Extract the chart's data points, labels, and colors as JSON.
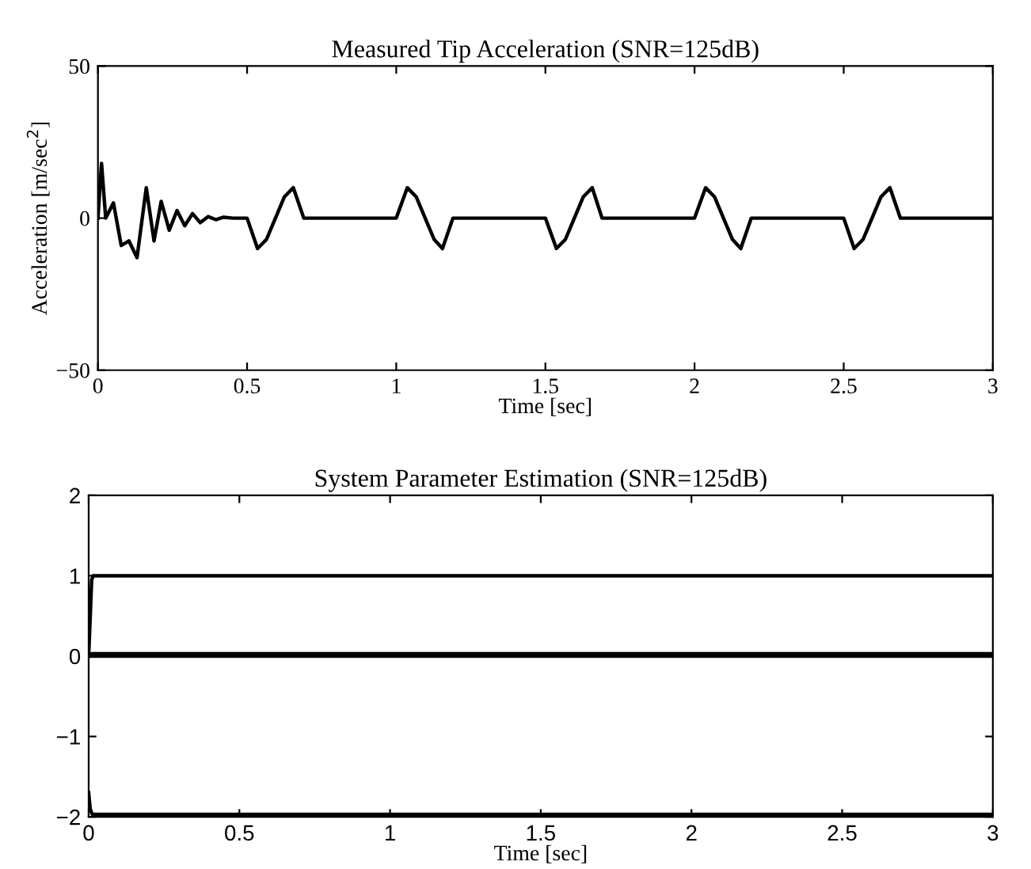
{
  "chart_data": [
    {
      "type": "line",
      "title": "Measured Tip Acceleration (SNR=125dB)",
      "xlabel": "Time [sec]",
      "ylabel": "Acceleration [m/sec$^{2}$]",
      "xlim": [
        0,
        3
      ],
      "ylim": [
        -50,
        50
      ],
      "xticks": [
        0,
        0.5,
        1,
        1.5,
        2,
        2.5,
        3
      ],
      "yticks": [
        -50,
        0,
        50
      ],
      "grid": false,
      "legend": false,
      "marker": "none",
      "line_style": "solid",
      "series": [
        {
          "color": "#000000",
          "x": [
            0,
            0.012,
            0.026,
            0.052,
            0.078,
            0.104,
            0.131,
            0.162,
            0.188,
            0.212,
            0.239,
            0.265,
            0.291,
            0.317,
            0.343,
            0.369,
            0.395,
            0.421,
            0.453,
            0.5,
            0.535,
            0.565,
            0.595,
            0.625,
            0.655,
            0.69,
            1.0,
            1.037,
            1.067,
            1.097,
            1.127,
            1.155,
            1.19,
            1.5,
            1.537,
            1.567,
            1.597,
            1.627,
            1.657,
            1.69,
            2.0,
            2.037,
            2.067,
            2.097,
            2.127,
            2.155,
            2.19,
            2.5,
            2.535,
            2.565,
            2.595,
            2.625,
            2.655,
            2.69,
            3.0
          ],
          "values": [
            0,
            18,
            0,
            5,
            -9,
            -7.5,
            -13,
            10,
            -7.5,
            5.5,
            -4,
            2.5,
            -2.5,
            1.5,
            -1.5,
            0.5,
            -0.5,
            0.3,
            0,
            0,
            -10,
            -7,
            0,
            7,
            10,
            0,
            0,
            10,
            7,
            0,
            -7,
            -10,
            0,
            0,
            -10,
            -7,
            0,
            7,
            10,
            0,
            0,
            10,
            7,
            0,
            -7,
            -10,
            0,
            0,
            -10,
            -7,
            0,
            7,
            10,
            0,
            0
          ]
        }
      ]
    },
    {
      "type": "line",
      "title": "System Parameter Estimation (SNR=125dB)",
      "xlabel": "Time [sec]",
      "xlim": [
        0,
        3
      ],
      "ylim": [
        -2,
        2
      ],
      "xticks": [
        0,
        0.5,
        1,
        1.5,
        2,
        2.5,
        3
      ],
      "yticks": [
        -2,
        -1,
        0,
        1,
        2
      ],
      "grid": false,
      "legend": false,
      "marker": "none",
      "line_style": "solid",
      "series": [
        {
          "color": "#000000",
          "x": [
            0,
            0.01,
            0.015,
            3
          ],
          "values": [
            0,
            0.95,
            1,
            1
          ]
        },
        {
          "color": "#000000",
          "x": [
            0,
            0.01,
            3
          ],
          "values": [
            0,
            0.03,
            0.03
          ]
        },
        {
          "color": "#000000",
          "x": [
            0,
            3
          ],
          "values": [
            0,
            0
          ]
        },
        {
          "color": "#000000",
          "x": [
            0,
            0.005,
            0.012,
            3
          ],
          "values": [
            -1.7,
            -1.9,
            -1.97,
            -1.97
          ]
        }
      ]
    }
  ]
}
